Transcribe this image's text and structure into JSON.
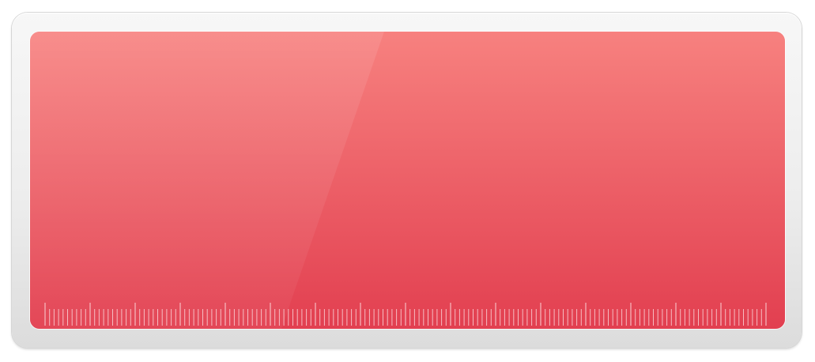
{
  "panel": {
    "colors": {
      "top": "#f7817f",
      "bottom": "#e23f50",
      "tick": "#fbdadd",
      "frame": "#eeeeee"
    },
    "ruler": {
      "minor_ticks_per_major": 5
    }
  }
}
